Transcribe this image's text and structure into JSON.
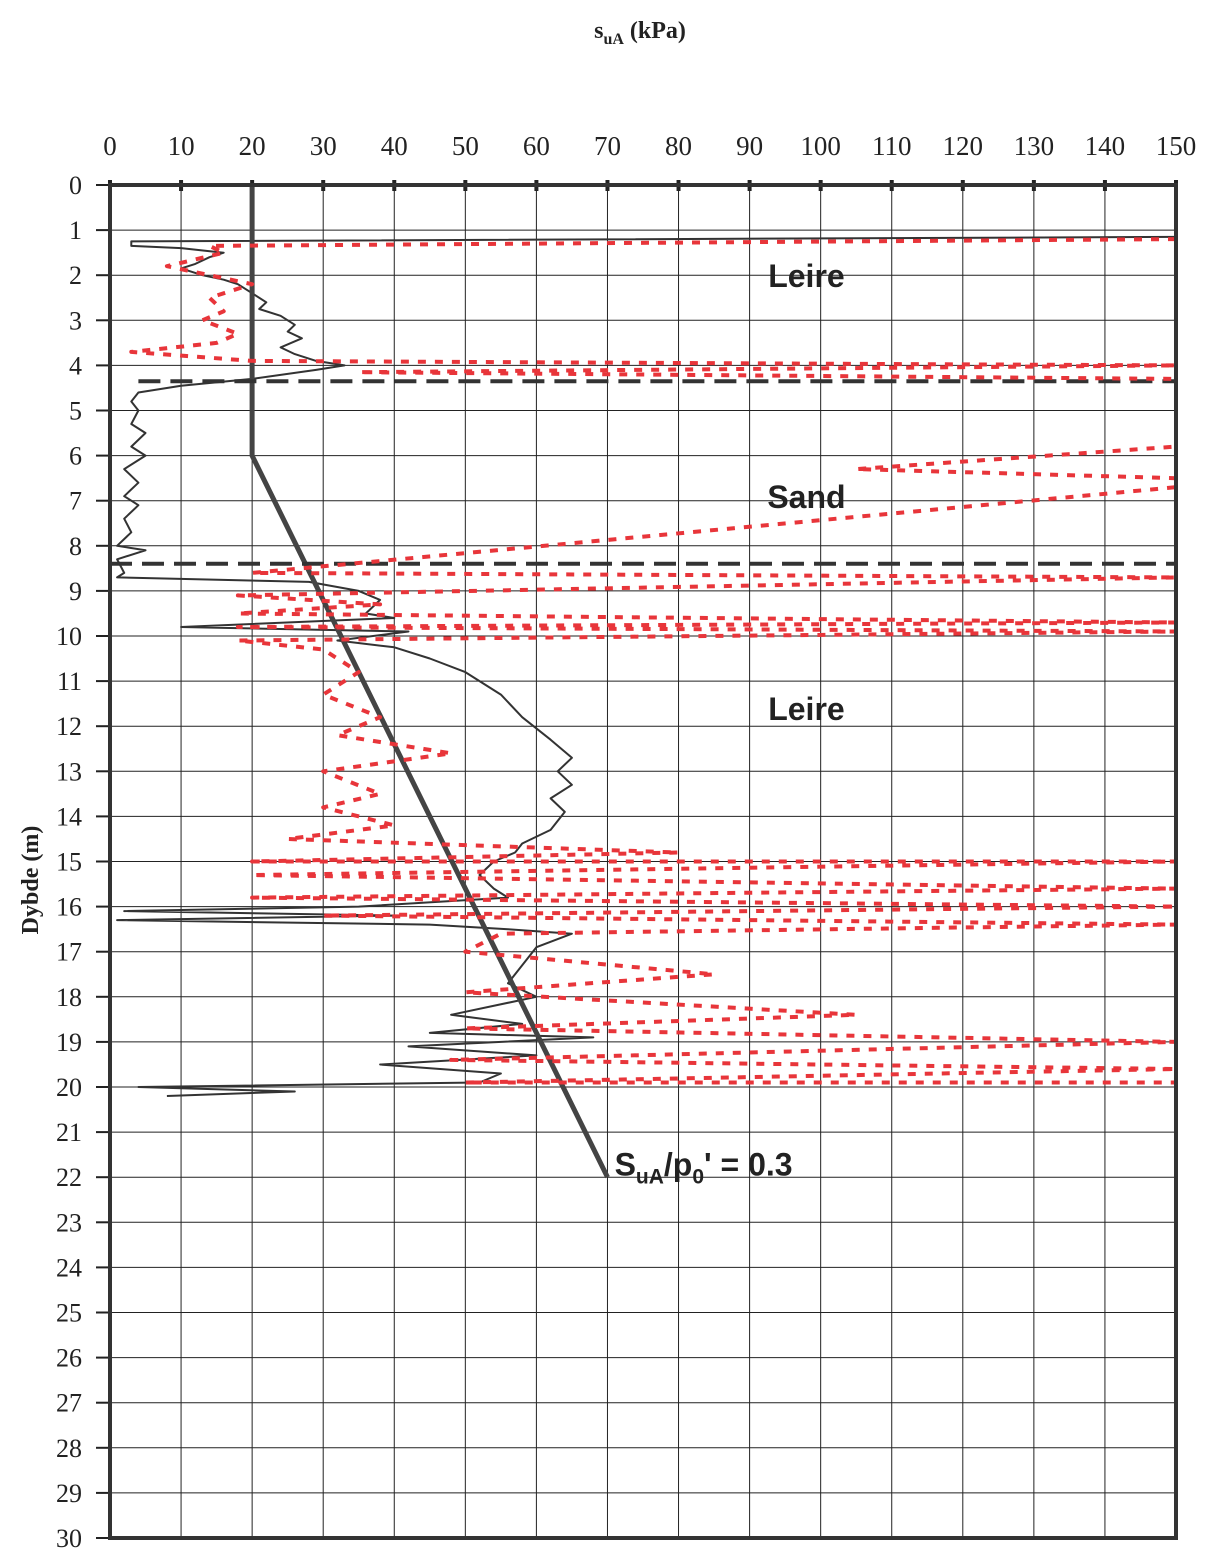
{
  "chart_data": {
    "type": "line",
    "xlabel": "s",
    "xlabel_subscript": "uA",
    "xlabel_unit": "(kPa)",
    "ylabel": "Dybde (m)",
    "xlim": [
      0,
      150
    ],
    "ylim": [
      0,
      30
    ],
    "x_ticks": [
      0,
      10,
      20,
      30,
      40,
      50,
      60,
      70,
      80,
      90,
      100,
      110,
      120,
      130,
      140,
      150
    ],
    "y_ticks": [
      0,
      1,
      2,
      3,
      4,
      5,
      6,
      7,
      8,
      9,
      10,
      11,
      12,
      13,
      14,
      15,
      16,
      17,
      18,
      19,
      20,
      21,
      22,
      23,
      24,
      25,
      26,
      27,
      28,
      29,
      30
    ],
    "x_axis_position": "top",
    "y_axis_inverted": true,
    "grid": true,
    "colors": {
      "measured_line": "#333333",
      "derived_points": "#e8353a",
      "trend_line": "#444444",
      "layer_boundary": "#333333",
      "grid": "#222222"
    },
    "series": [
      {
        "style": "solid-thin-black",
        "points": [
          [
            150,
            1.15
          ],
          [
            3,
            1.25
          ],
          [
            3,
            1.35
          ],
          [
            10,
            1.4
          ],
          [
            16,
            1.5
          ],
          [
            14,
            1.6
          ],
          [
            12,
            1.75
          ],
          [
            10,
            1.85
          ],
          [
            13,
            2.0
          ],
          [
            16,
            2.1
          ],
          [
            18,
            2.2
          ],
          [
            20,
            2.4
          ],
          [
            22,
            2.6
          ],
          [
            21,
            2.75
          ],
          [
            24,
            2.9
          ],
          [
            26,
            3.1
          ],
          [
            25,
            3.25
          ],
          [
            27,
            3.4
          ],
          [
            24,
            3.6
          ],
          [
            26,
            3.75
          ],
          [
            29,
            3.9
          ],
          [
            33,
            4.0
          ],
          [
            29,
            4.1
          ],
          [
            20,
            4.3
          ],
          [
            10,
            4.45
          ],
          [
            4,
            4.6
          ],
          [
            3,
            4.8
          ],
          [
            4,
            5.0
          ],
          [
            3,
            5.3
          ],
          [
            5,
            5.5
          ],
          [
            3,
            5.8
          ],
          [
            5,
            6.0
          ],
          [
            2,
            6.3
          ],
          [
            4,
            6.6
          ],
          [
            2,
            6.9
          ],
          [
            4,
            7.1
          ],
          [
            2,
            7.4
          ],
          [
            3,
            7.7
          ],
          [
            1,
            8.0
          ],
          [
            5,
            8.1
          ],
          [
            1,
            8.3
          ],
          [
            2,
            8.6
          ],
          [
            1,
            8.7
          ],
          [
            28,
            8.8
          ],
          [
            35,
            9.0
          ],
          [
            38,
            9.2
          ],
          [
            36,
            9.5
          ],
          [
            40,
            9.6
          ],
          [
            10,
            9.8
          ],
          [
            42,
            9.9
          ],
          [
            32,
            10.1
          ],
          [
            40,
            10.25
          ],
          [
            45,
            10.5
          ],
          [
            50,
            10.8
          ],
          [
            55,
            11.3
          ],
          [
            58,
            11.8
          ],
          [
            62,
            12.3
          ],
          [
            65,
            12.7
          ],
          [
            63,
            13.0
          ],
          [
            65,
            13.3
          ],
          [
            62,
            13.6
          ],
          [
            64,
            13.9
          ],
          [
            62,
            14.3
          ],
          [
            58,
            14.6
          ],
          [
            57,
            14.8
          ],
          [
            54,
            15.0
          ],
          [
            52,
            15.3
          ],
          [
            54,
            15.6
          ],
          [
            56,
            15.8
          ],
          [
            35,
            16.0
          ],
          [
            2,
            16.1
          ],
          [
            40,
            16.2
          ],
          [
            1,
            16.3
          ],
          [
            45,
            16.4
          ],
          [
            56,
            16.5
          ],
          [
            65,
            16.6
          ],
          [
            60,
            16.9
          ],
          [
            58,
            17.3
          ],
          [
            56,
            17.7
          ],
          [
            60,
            18.0
          ],
          [
            48,
            18.4
          ],
          [
            58,
            18.6
          ],
          [
            45,
            18.8
          ],
          [
            68,
            18.9
          ],
          [
            42,
            19.1
          ],
          [
            60,
            19.3
          ],
          [
            38,
            19.5
          ],
          [
            55,
            19.7
          ],
          [
            52,
            19.9
          ],
          [
            4,
            20.0
          ],
          [
            26,
            20.1
          ],
          [
            8,
            20.2
          ]
        ]
      },
      {
        "style": "solid-thick-trend",
        "points": [
          [
            20,
            0
          ],
          [
            20,
            6
          ],
          [
            70,
            22
          ]
        ]
      },
      {
        "style": "dashed-black",
        "points": [
          [
            4,
            4.35
          ],
          [
            150,
            4.35
          ]
        ]
      },
      {
        "style": "dashed-black",
        "points": [
          [
            0,
            8.4
          ],
          [
            150,
            8.4
          ]
        ]
      },
      {
        "style": "dotted-red",
        "points": [
          [
            150,
            1.2
          ],
          [
            14,
            1.35
          ],
          [
            16,
            1.5
          ],
          [
            8,
            1.8
          ],
          [
            14,
            2.0
          ],
          [
            20,
            2.2
          ],
          [
            14,
            2.5
          ],
          [
            16,
            2.8
          ],
          [
            13,
            3.0
          ],
          [
            18,
            3.3
          ],
          [
            15,
            3.5
          ],
          [
            3,
            3.7
          ],
          [
            20,
            3.9
          ],
          [
            150,
            4.0
          ],
          [
            35,
            4.15
          ],
          [
            150,
            4.3
          ],
          [
            150,
            4.8
          ],
          [
            150,
            5.8
          ],
          [
            105,
            6.3
          ],
          [
            150,
            6.5
          ],
          [
            150,
            6.7
          ],
          [
            20,
            8.6
          ],
          [
            150,
            8.7
          ],
          [
            18,
            9.1
          ],
          [
            38,
            9.3
          ],
          [
            18,
            9.5
          ],
          [
            150,
            9.7
          ],
          [
            18,
            9.8
          ],
          [
            150,
            9.9
          ],
          [
            18,
            10.1
          ],
          [
            30,
            10.3
          ],
          [
            35,
            10.8
          ],
          [
            30,
            11.3
          ],
          [
            38,
            11.8
          ],
          [
            32,
            12.2
          ],
          [
            48,
            12.6
          ],
          [
            30,
            13.0
          ],
          [
            38,
            13.5
          ],
          [
            30,
            13.8
          ],
          [
            40,
            14.2
          ],
          [
            25,
            14.5
          ],
          [
            80,
            14.8
          ],
          [
            20,
            15.0
          ],
          [
            150,
            15.0
          ],
          [
            20,
            15.3
          ],
          [
            150,
            15.6
          ],
          [
            20,
            15.8
          ],
          [
            150,
            16.0
          ],
          [
            30,
            16.2
          ],
          [
            150,
            16.4
          ],
          [
            55,
            16.6
          ],
          [
            50,
            17.0
          ],
          [
            85,
            17.5
          ],
          [
            50,
            17.9
          ],
          [
            105,
            18.4
          ],
          [
            50,
            18.7
          ],
          [
            150,
            19.0
          ],
          [
            48,
            19.4
          ],
          [
            150,
            19.6
          ],
          [
            50,
            19.9
          ],
          [
            150,
            19.9
          ]
        ]
      }
    ],
    "annotations": [
      {
        "text": "Leire",
        "x": 98,
        "y": 2.0
      },
      {
        "text": "Sand",
        "x": 98,
        "y": 6.9
      },
      {
        "text": "Leire",
        "x": 98,
        "y": 11.6
      },
      {
        "prefix": "S",
        "sub1": "uA",
        "mid": "/p",
        "sub2": "0",
        "suffix": "' = 0.3",
        "x": 71,
        "y": 21.7
      }
    ]
  }
}
